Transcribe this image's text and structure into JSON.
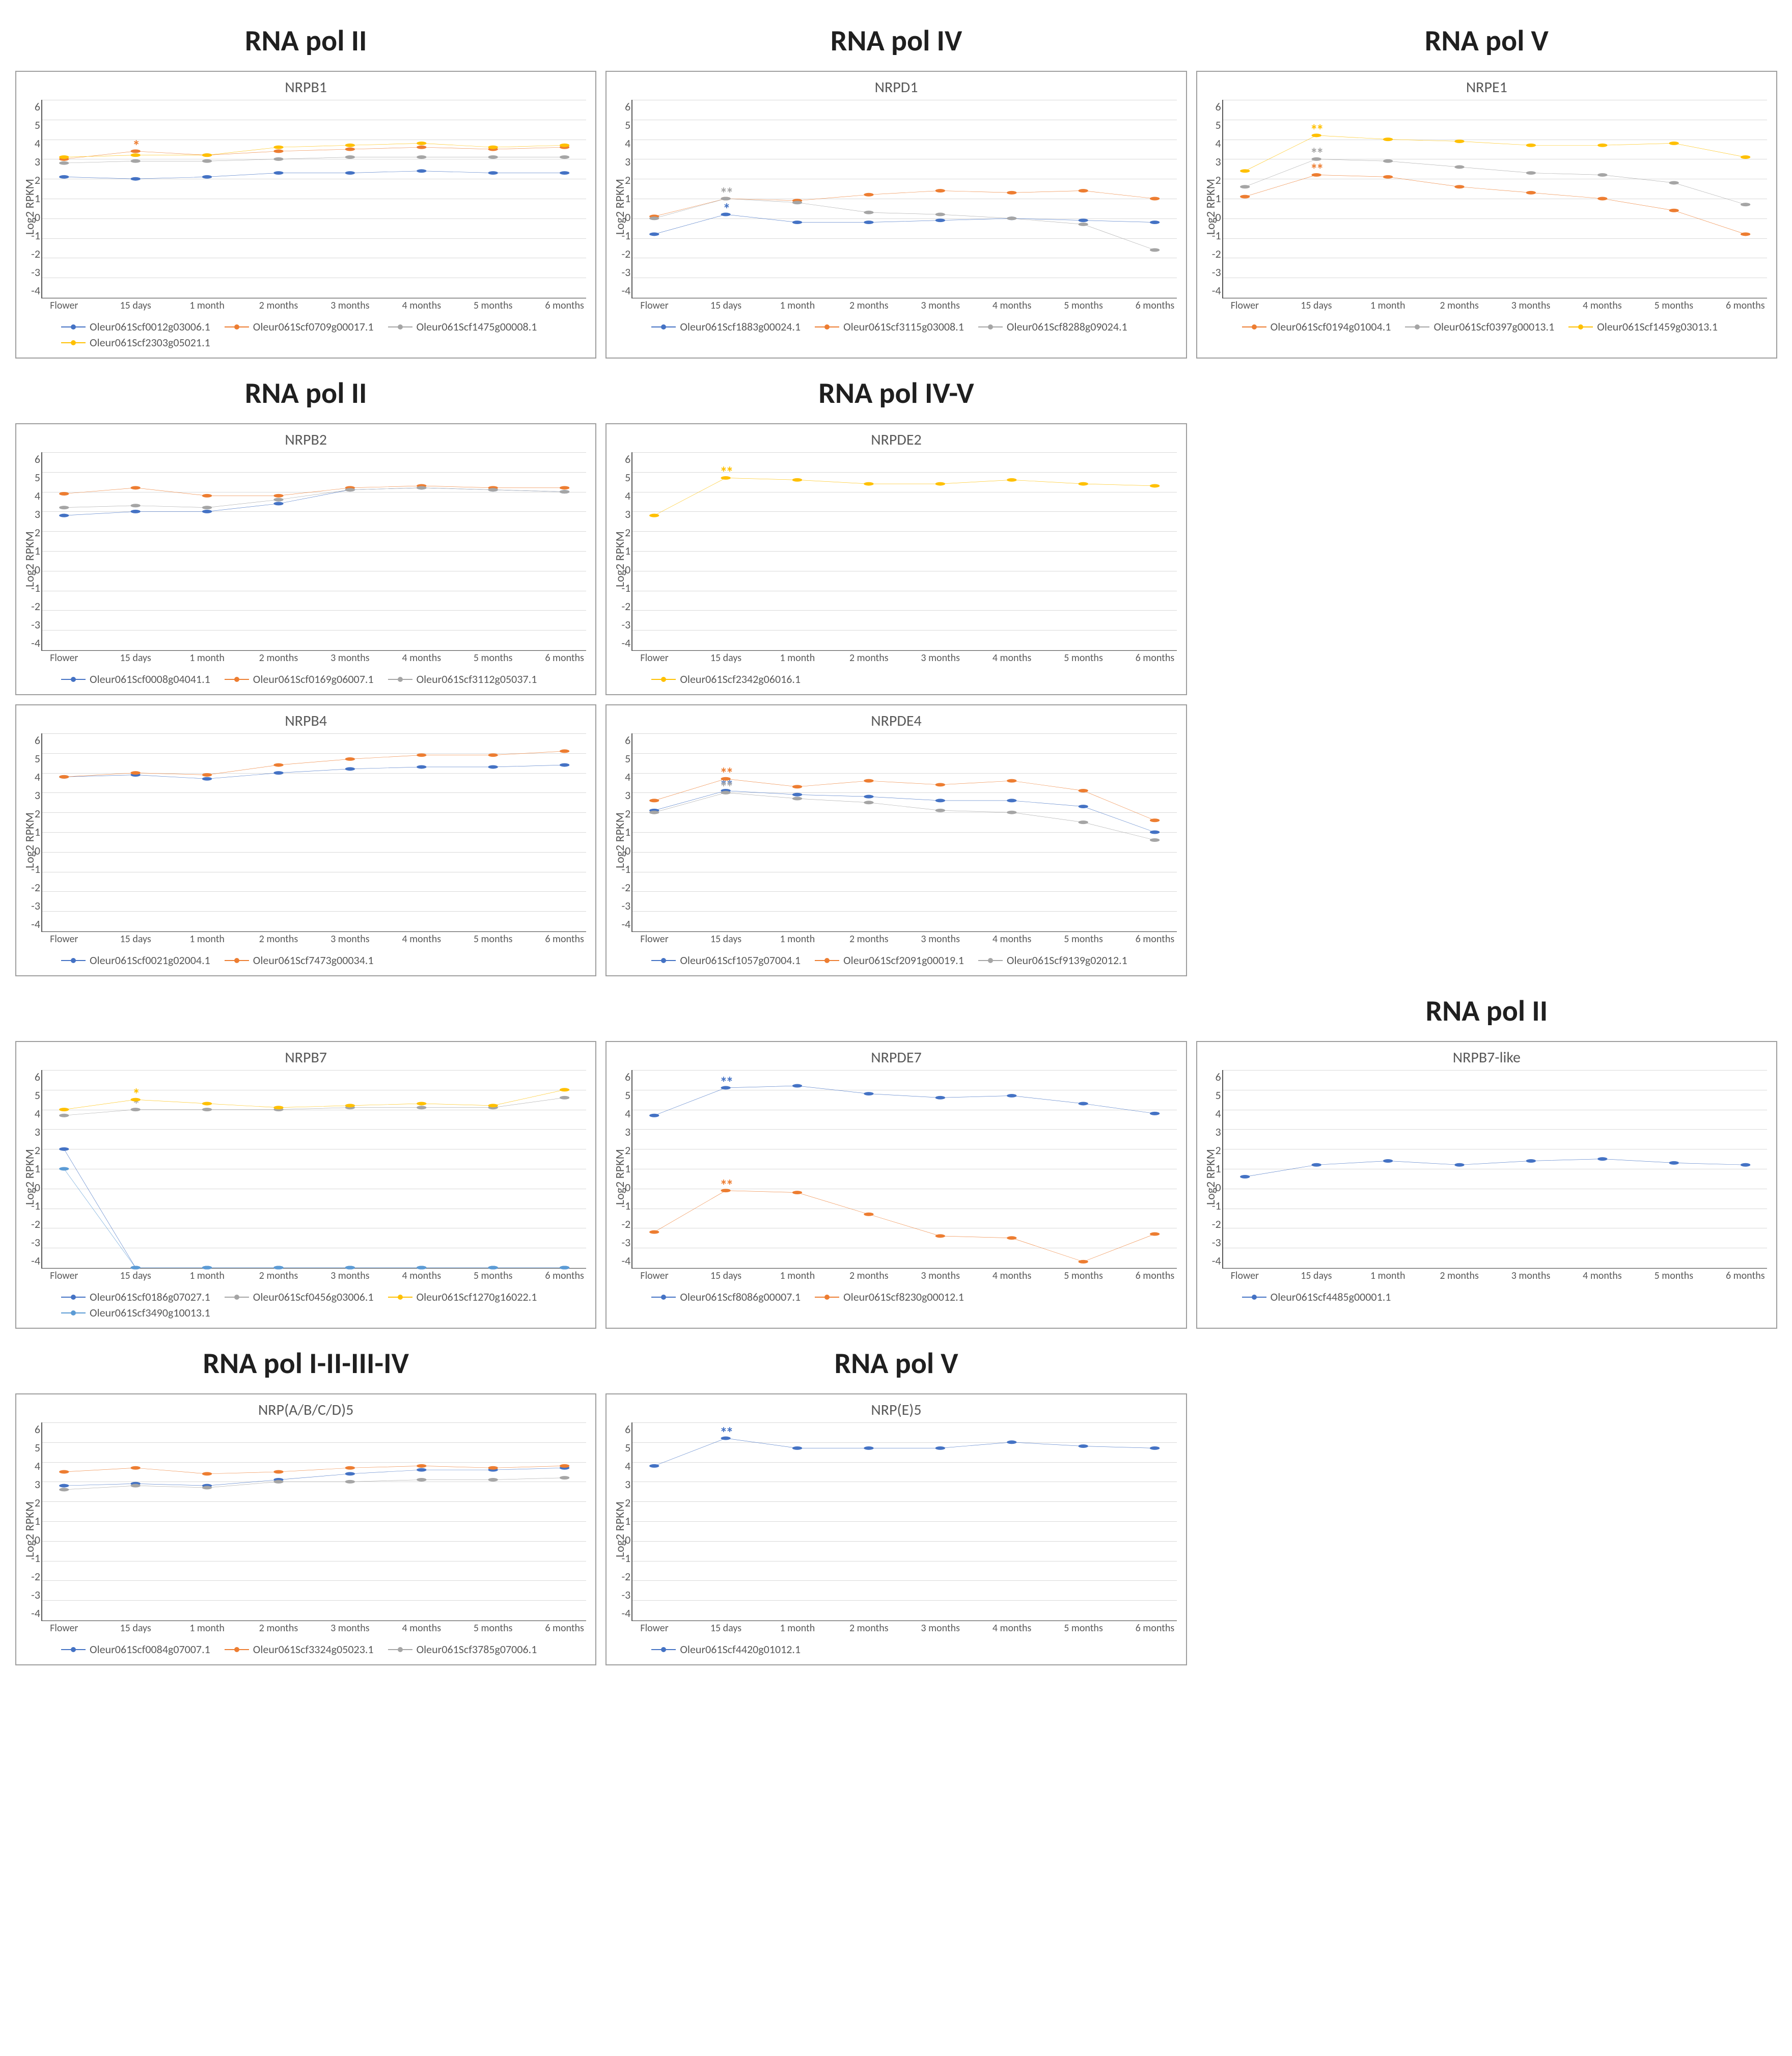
{
  "global": {
    "ylabel": "Log2 RPKM",
    "categories": [
      "Flower",
      "15 days",
      "1 month",
      "2 months",
      "3 months",
      "4 months",
      "5 months",
      "6 months"
    ],
    "ylim": [
      -4,
      6
    ],
    "ytick_step": 1,
    "series_colors": [
      "#4472c4",
      "#ed7d31",
      "#a5a5a5",
      "#ffc000",
      "#5b9bd5"
    ],
    "marker_size": 5,
    "line_width": 2,
    "grid_color": "#d9d9d9",
    "border_color": "#9e9e9e",
    "title_fontsize": 30,
    "heading_fontsize": 58,
    "tick_fontsize": 22,
    "legend_fontsize": 22
  },
  "headings": {
    "r1c1": "RNA pol II",
    "r1c2": "RNA pol IV",
    "r1c3": "RNA pol V",
    "r2c1": "RNA pol II",
    "r2c2": "RNA pol IV-V",
    "r4c3": "RNA pol II",
    "r5c1": "RNA pol I-II-III-IV",
    "r5c2": "RNA pol V"
  },
  "panels": {
    "nrpb1": {
      "title": "NRPB1",
      "series": [
        {
          "name": "Oleur061Scf0012g03006.1",
          "color": "#4472c4",
          "values": [
            2.1,
            2.0,
            2.1,
            2.3,
            2.3,
            2.4,
            2.3,
            2.3
          ]
        },
        {
          "name": "Oleur061Scf0709g00017.1",
          "color": "#ed7d31",
          "values": [
            3.0,
            3.4,
            3.2,
            3.4,
            3.5,
            3.6,
            3.5,
            3.6
          ],
          "sig": {
            "index": 1,
            "text": "*"
          }
        },
        {
          "name": "Oleur061Scf1475g00008.1",
          "color": "#a5a5a5",
          "values": [
            2.8,
            2.9,
            2.9,
            3.0,
            3.1,
            3.1,
            3.1,
            3.1
          ]
        },
        {
          "name": "Oleur061Scf2303g05021.1",
          "color": "#ffc000",
          "values": [
            3.1,
            3.2,
            3.2,
            3.6,
            3.7,
            3.8,
            3.6,
            3.7
          ]
        }
      ]
    },
    "nrpd1": {
      "title": "NRPD1",
      "series": [
        {
          "name": "Oleur061Scf1883g00024.1",
          "color": "#4472c4",
          "values": [
            -0.8,
            0.2,
            -0.2,
            -0.2,
            -0.1,
            0.0,
            -0.1,
            -0.2
          ],
          "sig": {
            "index": 1,
            "text": "*"
          }
        },
        {
          "name": "Oleur061Scf3115g03008.1",
          "color": "#ed7d31",
          "values": [
            0.1,
            1.0,
            0.9,
            1.2,
            1.4,
            1.3,
            1.4,
            1.0
          ]
        },
        {
          "name": "Oleur061Scf8288g09024.1",
          "color": "#a5a5a5",
          "values": [
            0.0,
            1.0,
            0.8,
            0.3,
            0.2,
            0.0,
            -0.3,
            -1.6
          ],
          "sig": {
            "index": 1,
            "text": "**"
          }
        }
      ]
    },
    "nrpe1": {
      "title": "NRPE1",
      "series": [
        {
          "name": "Oleur061Scf0194g01004.1",
          "color": "#ed7d31",
          "values": [
            1.1,
            2.2,
            2.1,
            1.6,
            1.3,
            1.0,
            0.4,
            -0.8
          ],
          "sig": {
            "index": 1,
            "text": "**"
          }
        },
        {
          "name": "Oleur061Scf0397g00013.1",
          "color": "#a5a5a5",
          "values": [
            1.6,
            3.0,
            2.9,
            2.6,
            2.3,
            2.2,
            1.8,
            0.7
          ],
          "sig": {
            "index": 1,
            "text": "**"
          }
        },
        {
          "name": "Oleur061Scf1459g03013.1",
          "color": "#ffc000",
          "values": [
            2.4,
            4.2,
            4.0,
            3.9,
            3.7,
            3.7,
            3.8,
            3.1
          ],
          "sig": {
            "index": 1,
            "text": "**"
          }
        }
      ]
    },
    "nrpb2": {
      "title": "NRPB2",
      "series": [
        {
          "name": "Oleur061Scf0008g04041.1",
          "color": "#4472c4",
          "values": [
            2.8,
            3.0,
            3.0,
            3.4,
            4.1,
            4.2,
            4.1,
            4.0
          ]
        },
        {
          "name": "Oleur061Scf0169g06007.1",
          "color": "#ed7d31",
          "values": [
            3.9,
            4.2,
            3.8,
            3.8,
            4.2,
            4.3,
            4.2,
            4.2
          ]
        },
        {
          "name": "Oleur061Scf3112g05037.1",
          "color": "#a5a5a5",
          "values": [
            3.2,
            3.3,
            3.2,
            3.6,
            4.1,
            4.2,
            4.1,
            4.0
          ]
        }
      ]
    },
    "nrpde2": {
      "title": "NRPDE2",
      "series": [
        {
          "name": "Oleur061Scf2342g06016.1",
          "color": "#ffc000",
          "values": [
            2.8,
            4.7,
            4.6,
            4.4,
            4.4,
            4.6,
            4.4,
            4.3
          ],
          "sig": {
            "index": 1,
            "text": "**"
          }
        }
      ]
    },
    "nrpb4": {
      "title": "NRPB4",
      "series": [
        {
          "name": "Oleur061Scf0021g02004.1",
          "color": "#4472c4",
          "values": [
            3.8,
            3.9,
            3.7,
            4.0,
            4.2,
            4.3,
            4.3,
            4.4
          ]
        },
        {
          "name": "Oleur061Scf7473g00034.1",
          "color": "#ed7d31",
          "values": [
            3.8,
            4.0,
            3.9,
            4.4,
            4.7,
            4.9,
            4.9,
            5.1
          ]
        }
      ]
    },
    "nrpde4": {
      "title": "NRPDE4",
      "series": [
        {
          "name": "Oleur061Scf1057g07004.1",
          "color": "#4472c4",
          "values": [
            2.1,
            3.1,
            2.9,
            2.8,
            2.6,
            2.6,
            2.3,
            1.0
          ],
          "sig": {
            "index": 1,
            "text": "**"
          }
        },
        {
          "name": "Oleur061Scf2091g00019.1",
          "color": "#ed7d31",
          "values": [
            2.6,
            3.7,
            3.3,
            3.6,
            3.4,
            3.6,
            3.1,
            1.6
          ],
          "sig": {
            "index": 1,
            "text": "**"
          }
        },
        {
          "name": "Oleur061Scf9139g02012.1",
          "color": "#a5a5a5",
          "values": [
            2.0,
            3.0,
            2.7,
            2.5,
            2.1,
            2.0,
            1.5,
            0.6
          ],
          "sig": {
            "index": 1,
            "text": "**"
          }
        }
      ]
    },
    "nrpb7": {
      "title": "NRPB7",
      "series": [
        {
          "name": "Oleur061Scf0186g07027.1",
          "color": "#4472c4",
          "values": [
            2.0,
            -4.0,
            -4.0,
            -4.0,
            -4.0,
            -4.0,
            -4.0,
            -4.0
          ]
        },
        {
          "name": "Oleur061Scf0456g03006.1",
          "color": "#a5a5a5",
          "values": [
            3.7,
            4.0,
            4.0,
            4.0,
            4.1,
            4.1,
            4.1,
            4.6
          ],
          "sig": {
            "index": 1,
            "text": "*"
          }
        },
        {
          "name": "Oleur061Scf1270g16022.1",
          "color": "#ffc000",
          "values": [
            4.0,
            4.5,
            4.3,
            4.1,
            4.2,
            4.3,
            4.2,
            5.0
          ],
          "sig": {
            "index": 1,
            "text": "*"
          }
        },
        {
          "name": "Oleur061Scf3490g10013.1",
          "color": "#5b9bd5",
          "values": [
            1.0,
            -4.0,
            -4.0,
            -4.0,
            -4.0,
            -4.0,
            -4.0,
            -4.0
          ]
        }
      ]
    },
    "nrpde7": {
      "title": "NRPDE7",
      "series": [
        {
          "name": "Oleur061Scf8086g00007.1",
          "color": "#4472c4",
          "values": [
            3.7,
            5.1,
            5.2,
            4.8,
            4.6,
            4.7,
            4.3,
            3.8
          ],
          "sig": {
            "index": 1,
            "text": "**"
          }
        },
        {
          "name": "Oleur061Scf8230g00012.1",
          "color": "#ed7d31",
          "values": [
            -2.2,
            -0.1,
            -0.2,
            -1.3,
            -2.4,
            -2.5,
            -3.7,
            -2.3
          ],
          "sig": {
            "index": 1,
            "text": "**"
          }
        }
      ]
    },
    "nrpb7like": {
      "title": "NRPB7-like",
      "series": [
        {
          "name": "Oleur061Scf4485g00001.1",
          "color": "#4472c4",
          "values": [
            0.6,
            1.2,
            1.4,
            1.2,
            1.4,
            1.5,
            1.3,
            1.2
          ]
        }
      ]
    },
    "nrpabcd5": {
      "title": "NRP(A/B/C/D)5",
      "series": [
        {
          "name": "Oleur061Scf0084g07007.1",
          "color": "#4472c4",
          "values": [
            2.8,
            2.9,
            2.8,
            3.1,
            3.4,
            3.6,
            3.6,
            3.7
          ]
        },
        {
          "name": "Oleur061Scf3324g05023.1",
          "color": "#ed7d31",
          "values": [
            3.5,
            3.7,
            3.4,
            3.5,
            3.7,
            3.8,
            3.7,
            3.8
          ]
        },
        {
          "name": "Oleur061Scf3785g07006.1",
          "color": "#a5a5a5",
          "values": [
            2.6,
            2.8,
            2.7,
            3.0,
            3.0,
            3.1,
            3.1,
            3.2
          ]
        }
      ]
    },
    "nrpe5": {
      "title": "NRP(E)5",
      "series": [
        {
          "name": "Oleur061Scf4420g01012.1",
          "color": "#4472c4",
          "values": [
            3.8,
            5.2,
            4.7,
            4.7,
            4.7,
            5.0,
            4.8,
            4.7
          ],
          "sig": {
            "index": 1,
            "text": "**"
          }
        }
      ]
    }
  }
}
